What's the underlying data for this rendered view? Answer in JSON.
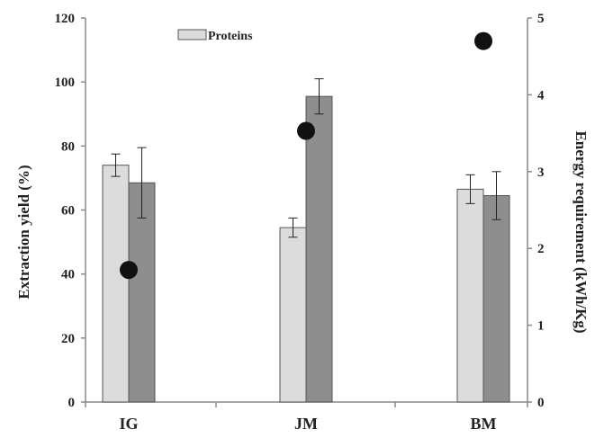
{
  "chart_data": {
    "type": "bar",
    "categories": [
      "IG",
      "JM",
      "BM"
    ],
    "series": [
      {
        "name": "Proteins",
        "color": "#dcdcdc",
        "values": [
          74,
          54.5,
          66.5
        ],
        "errors": [
          3.5,
          3,
          4.5
        ]
      },
      {
        "name": "",
        "color": "#8e8e8e",
        "values": [
          68.5,
          95.5,
          64.5
        ],
        "errors": [
          11,
          5.5,
          7.5
        ]
      }
    ],
    "secondary_series": {
      "type": "scatter",
      "name": "",
      "color": "#111111",
      "values": [
        1.72,
        3.53,
        4.7
      ]
    },
    "ylabel": "Extraction yield (%)",
    "y2label": "Energy requirement (kWh/Kg)",
    "ylim": [
      0,
      120
    ],
    "yticks": [
      0,
      20,
      40,
      60,
      80,
      100,
      120
    ],
    "y2lim": [
      0,
      5
    ],
    "y2ticks": [
      0,
      1,
      2,
      3,
      4,
      5
    ],
    "legend": {
      "position": "top-left",
      "entries": [
        "Proteins"
      ]
    },
    "grid": false
  }
}
